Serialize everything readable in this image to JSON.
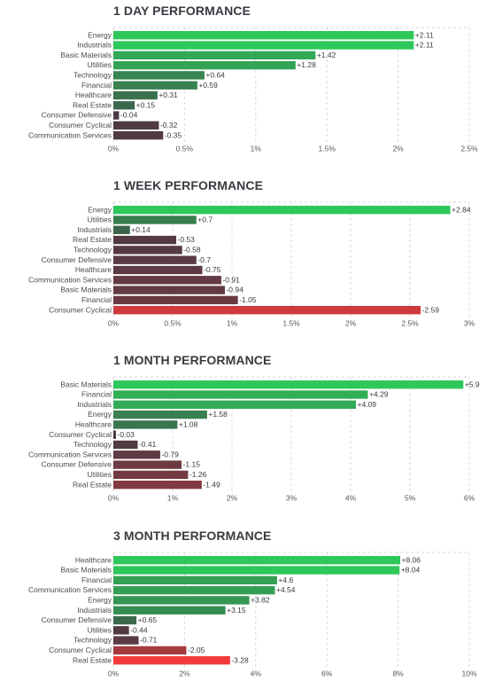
{
  "chart_data": [
    {
      "type": "bar",
      "title": "1 DAY PERFORMANCE",
      "orientation": "horizontal",
      "categories": [
        "Energy",
        "Industrials",
        "Basic Materials",
        "Utilities",
        "Technology",
        "Financial",
        "Healthcare",
        "Real Estate",
        "Consumer Defensive",
        "Consumer Cyclical",
        "Communication Services"
      ],
      "values": [
        2.11,
        2.11,
        1.42,
        1.28,
        0.64,
        0.59,
        0.31,
        0.15,
        -0.04,
        -0.32,
        -0.35
      ],
      "value_labels": [
        "+2.11",
        "+2.11",
        "+1.42",
        "+1.28",
        "+0.64",
        "+0.59",
        "+0.31",
        "+0.15",
        "-0.04",
        "-0.32",
        "-0.35"
      ],
      "xlim": [
        0,
        2.5
      ],
      "xticks": [
        0,
        0.5,
        1,
        1.5,
        2,
        2.5
      ],
      "xtick_labels": [
        "0%",
        "0.5%",
        "1%",
        "1.5%",
        "2%",
        "2.5%"
      ],
      "grid": true,
      "bar_length": "absolute value"
    },
    {
      "type": "bar",
      "title": "1 WEEK PERFORMANCE",
      "orientation": "horizontal",
      "categories": [
        "Energy",
        "Utilities",
        "Industrials",
        "Real Estate",
        "Technology",
        "Consumer Defensive",
        "Healthcare",
        "Communication Services",
        "Basic Materials",
        "Financial",
        "Consumer Cyclical"
      ],
      "values": [
        2.84,
        0.7,
        0.14,
        -0.53,
        -0.58,
        -0.7,
        -0.75,
        -0.91,
        -0.94,
        -1.05,
        -2.59
      ],
      "value_labels": [
        "+2.84",
        "+0.7",
        "+0.14",
        "-0.53",
        "-0.58",
        "-0.7",
        "-0.75",
        "-0.91",
        "-0.94",
        "-1.05",
        "-2.59"
      ],
      "xlim": [
        0,
        3
      ],
      "xticks": [
        0,
        0.5,
        1,
        1.5,
        2,
        2.5,
        3
      ],
      "xtick_labels": [
        "0%",
        "0.5%",
        "1%",
        "1.5%",
        "2%",
        "2.5%",
        "3%"
      ],
      "grid": true,
      "bar_length": "absolute value"
    },
    {
      "type": "bar",
      "title": "1 MONTH PERFORMANCE",
      "orientation": "horizontal",
      "categories": [
        "Basic Materials",
        "Financial",
        "Industrials",
        "Energy",
        "Healthcare",
        "Consumer Cyclical",
        "Technology",
        "Communication Services",
        "Consumer Defensive",
        "Utilities",
        "Real Estate"
      ],
      "values": [
        5.9,
        4.29,
        4.09,
        1.58,
        1.08,
        -0.03,
        -0.41,
        -0.79,
        -1.15,
        -1.26,
        -1.49
      ],
      "value_labels": [
        "+5.9",
        "+4.29",
        "+4.09",
        "+1.58",
        "+1.08",
        "-0.03",
        "-0.41",
        "-0.79",
        "-1.15",
        "-1.26",
        "-1.49"
      ],
      "xlim": [
        0,
        6
      ],
      "xticks": [
        0,
        1,
        2,
        3,
        4,
        5,
        6
      ],
      "xtick_labels": [
        "0%",
        "1%",
        "2%",
        "3%",
        "4%",
        "5%",
        "6%"
      ],
      "grid": true,
      "bar_length": "absolute value"
    },
    {
      "type": "bar",
      "title": "3 MONTH PERFORMANCE",
      "orientation": "horizontal",
      "categories": [
        "Healthcare",
        "Basic Materials",
        "Financial",
        "Communication Services",
        "Energy",
        "Industrials",
        "Consumer Defensive",
        "Utilities",
        "Technology",
        "Consumer Cyclical",
        "Real Estate"
      ],
      "values": [
        8.06,
        8.04,
        4.6,
        4.54,
        3.82,
        3.15,
        0.65,
        -0.44,
        -0.71,
        -2.05,
        -3.28
      ],
      "value_labels": [
        "+8.06",
        "+8.04",
        "+4.6",
        "+4.54",
        "+3.82",
        "+3.15",
        "+0.65",
        "-0.44",
        "-0.71",
        "-2.05",
        "-3.28"
      ],
      "xlim": [
        0,
        10
      ],
      "xticks": [
        0,
        2,
        4,
        6,
        8,
        10
      ],
      "xtick_labels": [
        "0%",
        "2%",
        "4%",
        "6%",
        "8%",
        "10%"
      ],
      "grid": true,
      "bar_length": "absolute value"
    }
  ],
  "colors": {
    "positive_strong": "#2ec75a",
    "positive_weak": "#3d5a4a",
    "negative_weak": "#4a3a44",
    "negative_strong": "#f23a3a"
  }
}
